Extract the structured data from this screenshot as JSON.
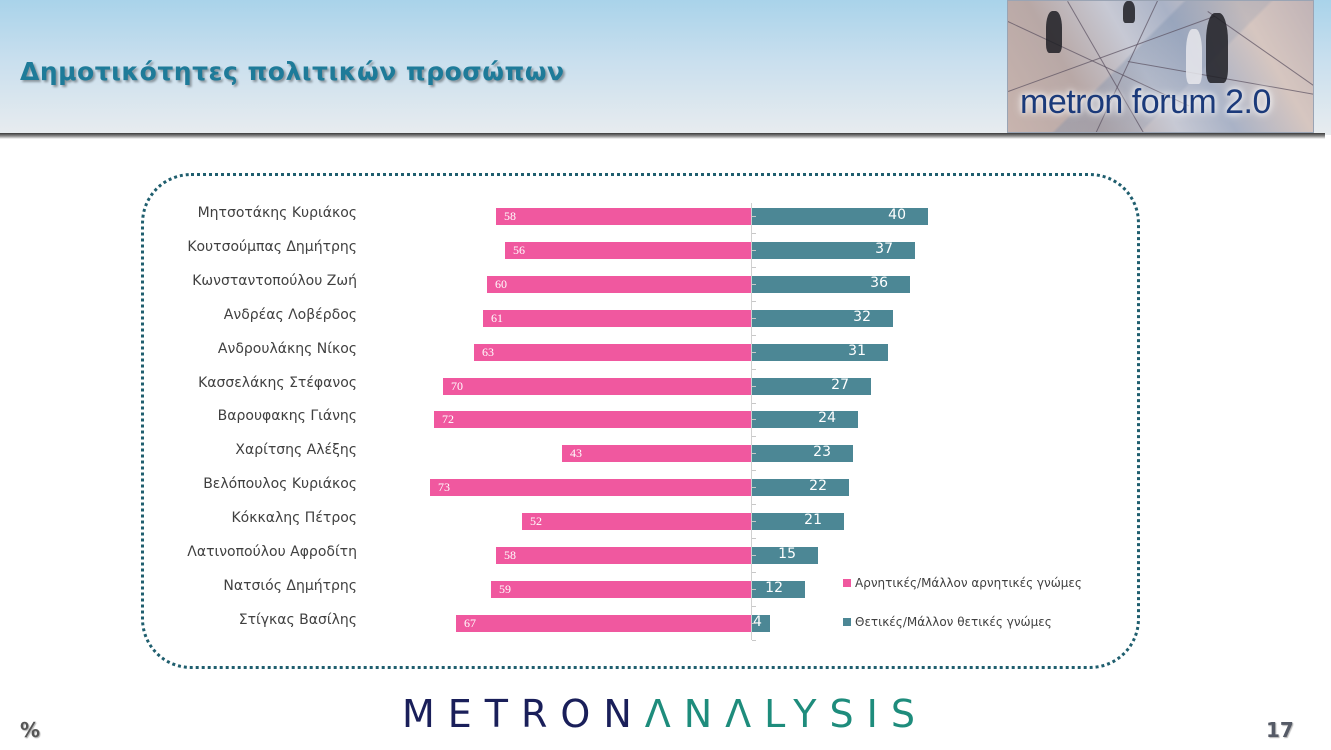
{
  "header": {
    "title": "Δημοτικότητες πολιτικών προσώπων",
    "banner_label": "metron forum 2.0"
  },
  "footer": {
    "unit_symbol": "%",
    "page_number": "17",
    "brand_part1": "METRON",
    "brand_part2": "ΛNΛLYSIS"
  },
  "colors": {
    "negative": "#f0589f",
    "positive": "#4c8795",
    "title": "#1e7b99",
    "frame": "#1f5e6e"
  },
  "legend": {
    "negative_label": "Αρνητικές/Μάλλον αρνητικές γνώμες",
    "positive_label": "Θετικές/Μάλλον θετικές γνώμες"
  },
  "rows": [
    {
      "name": "Μητσοτάκης Κυριάκος",
      "neg": "58",
      "pos": "40"
    },
    {
      "name": "Κουτσούμπας Δημήτρης",
      "neg": "56",
      "pos": "37"
    },
    {
      "name": "Κωνσταντοπούλου Ζωή",
      "neg": "60",
      "pos": "36"
    },
    {
      "name": "Ανδρέας Λοβέρδος",
      "neg": "61",
      "pos": "32"
    },
    {
      "name": "Ανδρουλάκης Νίκος",
      "neg": "63",
      "pos": "31"
    },
    {
      "name": "Κασσελάκης Στέφανος",
      "neg": "70",
      "pos": "27"
    },
    {
      "name": "Βαρουφακης Γιάνης",
      "neg": "72",
      "pos": "24"
    },
    {
      "name": "Χαρίτσης Αλέξης",
      "neg": "43",
      "pos": "23"
    },
    {
      "name": "Βελόπουλος Κυριάκος",
      "neg": "73",
      "pos": "22"
    },
    {
      "name": "Κόκκαλης Πέτρος",
      "neg": "52",
      "pos": "21"
    },
    {
      "name": "Λατινοπούλου Αφροδίτη",
      "neg": "58",
      "pos": "15"
    },
    {
      "name": "Νατσιός Δημήτρης",
      "neg": "59",
      "pos": "12"
    },
    {
      "name": "Στίγκας Βασίλης",
      "neg": "67",
      "pos": "4"
    }
  ],
  "chart_data": {
    "type": "bar",
    "orientation": "horizontal-diverging",
    "title": "Δημοτικότητες πολιτικών προσώπων",
    "xlabel": "",
    "ylabel": "",
    "unit": "%",
    "categories": [
      "Μητσοτάκης Κυριάκος",
      "Κουτσούμπας Δημήτρης",
      "Κωνσταντοπούλου Ζωή",
      "Ανδρέας Λοβέρδος",
      "Ανδρουλάκης Νίκος",
      "Κασσελάκης Στέφανος",
      "Βαρουφακης Γιάνης",
      "Χαρίτσης Αλέξης",
      "Βελόπουλος Κυριάκος",
      "Κόκκαλης Πέτρος",
      "Λατινοπούλου Αφροδίτη",
      "Νατσιός Δημήτρης",
      "Στίγκας Βασίλης"
    ],
    "series": [
      {
        "name": "Αρνητικές/Μάλλον αρνητικές γνώμες",
        "color": "#f0589f",
        "values": [
          58,
          56,
          60,
          61,
          63,
          70,
          72,
          43,
          73,
          52,
          58,
          59,
          67
        ]
      },
      {
        "name": "Θετικές/Μάλλον θετικές γνώμες",
        "color": "#4c8795",
        "values": [
          40,
          37,
          36,
          32,
          31,
          27,
          24,
          23,
          22,
          21,
          15,
          12,
          4
        ]
      }
    ],
    "grid": false,
    "legend_position": "right-bottom",
    "data_labels": true
  }
}
